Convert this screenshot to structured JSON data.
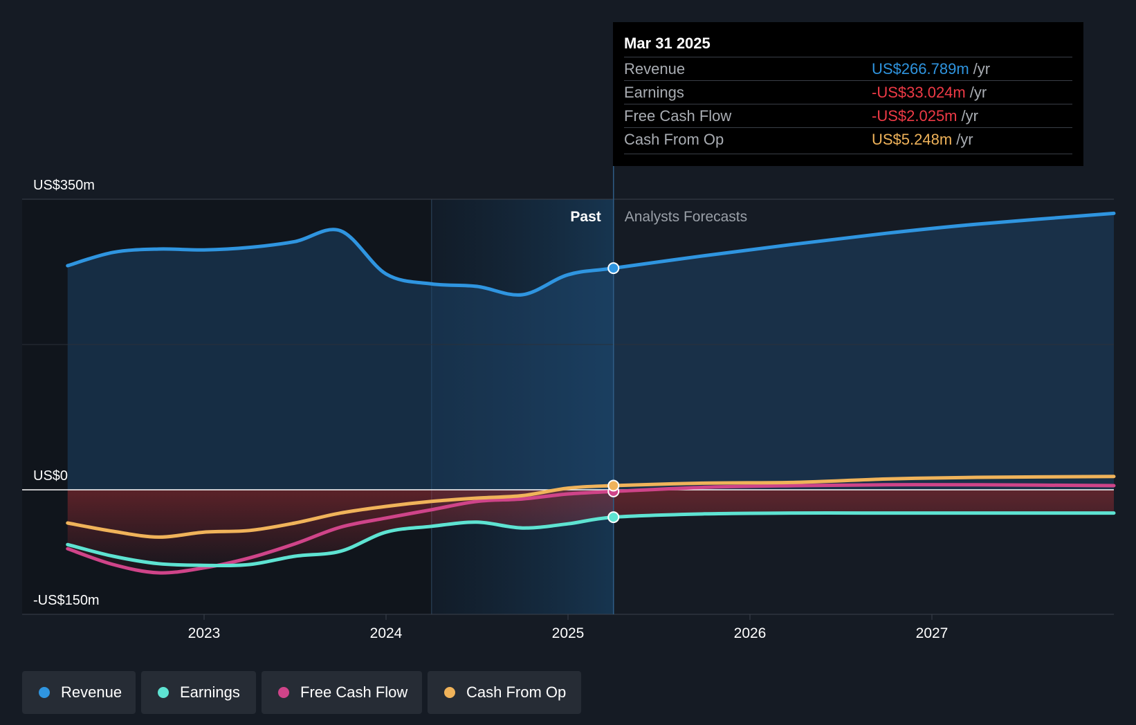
{
  "tooltip": {
    "date": "Mar 31 2025",
    "rows": [
      {
        "label": "Revenue",
        "value": "US$266.789m",
        "unit": "/yr",
        "color": "#2f95e0"
      },
      {
        "label": "Earnings",
        "value": "-US$33.024m",
        "unit": "/yr",
        "color": "#ee3a46"
      },
      {
        "label": "Free Cash Flow",
        "value": "-US$2.025m",
        "unit": "/yr",
        "color": "#ee3a46"
      },
      {
        "label": "Cash From Op",
        "value": "US$5.248m",
        "unit": "/yr",
        "color": "#f0b35a"
      }
    ]
  },
  "legend": [
    {
      "label": "Revenue",
      "color": "#2f95e0"
    },
    {
      "label": "Earnings",
      "color": "#5ee3d2"
    },
    {
      "label": "Free Cash Flow",
      "color": "#cf4489"
    },
    {
      "label": "Cash From Op",
      "color": "#f0b35a"
    }
  ],
  "chart_data": {
    "type": "line",
    "y_axis_labels": [
      "US$350m",
      "US$0",
      "-US$150m"
    ],
    "ylim": [
      -150,
      350
    ],
    "x_ticks": [
      "2023",
      "2024",
      "2025",
      "2026",
      "2027"
    ],
    "xlim": [
      2022.0,
      2028.0
    ],
    "highlight_range": [
      2024.25,
      2025.25
    ],
    "divider_x": 2025.25,
    "past_label": "Past",
    "forecast_label": "Analysts Forecasts",
    "series": [
      {
        "name": "Revenue",
        "color": "#2f95e0",
        "fill": true,
        "x": [
          2022.25,
          2022.5,
          2022.75,
          2023.0,
          2023.25,
          2023.5,
          2023.75,
          2024.0,
          2024.25,
          2024.5,
          2024.75,
          2025.0,
          2025.25,
          2025.75,
          2026.25,
          2026.75,
          2027.25,
          2028.0
        ],
        "y": [
          270,
          286,
          290,
          289,
          292,
          299,
          312,
          260,
          248,
          245,
          235,
          259,
          267,
          282,
          296,
          309,
          320,
          333
        ]
      },
      {
        "name": "Earnings",
        "color": "#5ee3d2",
        "x": [
          2022.25,
          2022.5,
          2022.75,
          2023.0,
          2023.25,
          2023.5,
          2023.75,
          2024.0,
          2024.25,
          2024.5,
          2024.75,
          2025.0,
          2025.25,
          2025.75,
          2026.25,
          2026.75,
          2027.25,
          2028.0
        ],
        "y": [
          -66,
          -80,
          -89,
          -91,
          -90,
          -80,
          -74,
          -51,
          -44,
          -39,
          -46,
          -41,
          -33,
          -29,
          -28,
          -28,
          -28,
          -28
        ]
      },
      {
        "name": "Free Cash Flow",
        "color": "#cf4489",
        "x": [
          2022.25,
          2022.5,
          2022.75,
          2023.0,
          2023.25,
          2023.5,
          2023.75,
          2024.0,
          2024.25,
          2024.5,
          2024.75,
          2025.0,
          2025.25,
          2025.75,
          2026.25,
          2026.75,
          2027.25,
          2028.0
        ],
        "y": [
          -71,
          -90,
          -100,
          -94,
          -82,
          -65,
          -45,
          -34,
          -24,
          -14,
          -11,
          -5,
          -2,
          3,
          5,
          6,
          6,
          5
        ]
      },
      {
        "name": "Cash From Op",
        "color": "#f0b35a",
        "x": [
          2022.25,
          2022.5,
          2022.75,
          2023.0,
          2023.25,
          2023.5,
          2023.75,
          2024.0,
          2024.25,
          2024.5,
          2024.75,
          2025.0,
          2025.25,
          2025.75,
          2026.25,
          2026.75,
          2027.25,
          2028.0
        ],
        "y": [
          -40,
          -50,
          -57,
          -51,
          -49,
          -40,
          -28,
          -20,
          -14,
          -10,
          -7,
          2,
          5,
          8,
          9,
          13,
          15,
          16
        ]
      }
    ],
    "markers_at_x": 2025.25
  }
}
